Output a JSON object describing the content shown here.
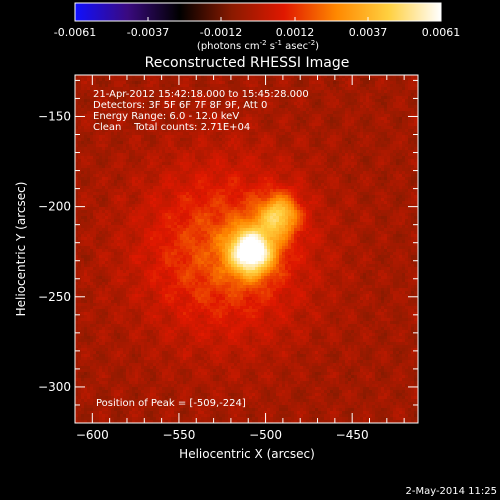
{
  "chart_data": {
    "type": "heatmap",
    "title": "Reconstructed RHESSI Image",
    "xlabel": "Heliocentric X (arcsec)",
    "ylabel": "Heliocentric Y (arcsec)",
    "xlim": [
      -610,
      -412
    ],
    "ylim": [
      -320,
      -127
    ],
    "xticks": [
      -600,
      -550,
      -500,
      -450
    ],
    "yticks": [
      -150,
      -200,
      -250,
      -300
    ],
    "colorbar": {
      "min": -0.0061,
      "max": 0.0061,
      "ticks": [
        "-0.0061",
        "-0.0037",
        "-0.0012",
        "0.0012",
        "0.0037",
        "0.0061"
      ],
      "unit_label": "(photons cm-2 s-1 asec-2)",
      "colormap_stops": [
        "#1010ff",
        "#3a0a80",
        "#000000",
        "#8a1a00",
        "#e01800",
        "#ff8800",
        "#ffd040",
        "#ffffff"
      ]
    },
    "annotations": [
      "21-Apr-2012 15:42:18.000 to 15:45:28.000",
      "Detectors: 3F 5F 6F 7F 8F 9F, Att 0",
      "Energy Range: 6.0 - 12.0 keV",
      "Clean    Total counts: 2.71E+04"
    ],
    "peak_label": "Position of Peak = [-509,-224]",
    "peak": {
      "x": -509,
      "y": -224,
      "value": 0.0061
    },
    "sources": [
      {
        "x": -509,
        "y": -224,
        "sigma": 9,
        "amplitude": 0.0061
      },
      {
        "x": -493,
        "y": -204,
        "sigma": 8,
        "amplitude": 0.0038
      },
      {
        "x": -525,
        "y": -224,
        "sigma": 34,
        "amplitude": 0.0022
      }
    ],
    "background_level": -0.0004,
    "timestamp": "2-May-2014 11:25"
  }
}
